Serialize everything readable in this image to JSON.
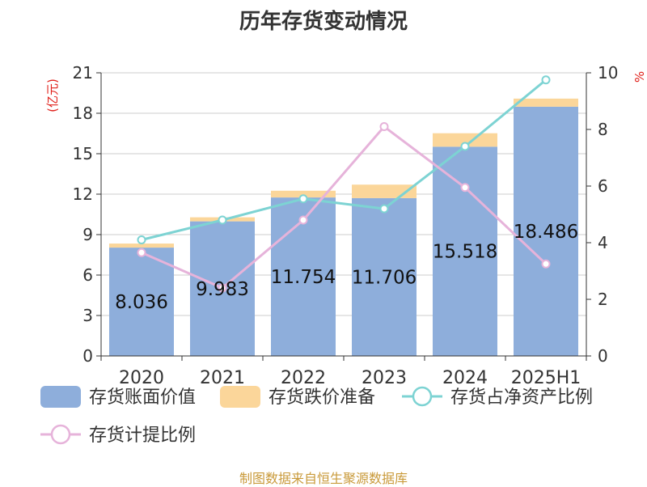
{
  "title": "历年存货变动情况",
  "source": "制图数据来自恒生聚源数据库",
  "colors": {
    "book_value": "#8eaedb",
    "reserve": "#fbd69a",
    "net_asset_ratio": "#7dd3d3",
    "provision_ratio": "#e6b3da",
    "axis_label": "#e0201a",
    "source": "#c99a3a"
  },
  "chart_data": {
    "type": "bar",
    "title": "历年存货变动情况",
    "categories": [
      "2020",
      "2021",
      "2022",
      "2023",
      "2024",
      "2025H1"
    ],
    "y_left": {
      "label": "(亿元)",
      "min": 0,
      "max": 21,
      "ticks": [
        0,
        3,
        6,
        9,
        12,
        15,
        18,
        21
      ]
    },
    "y_right": {
      "label": "%",
      "min": 0,
      "max": 10,
      "ticks": [
        0,
        2,
        4,
        6,
        8,
        10
      ]
    },
    "grid": true,
    "legend_position": "bottom",
    "series": [
      {
        "name": "存货账面价值",
        "type": "bar",
        "stack": "inv",
        "axis": "left",
        "values": [
          8.036,
          9.983,
          11.754,
          11.706,
          15.518,
          18.486
        ],
        "labels": [
          "8.036",
          "9.983",
          "11.754",
          "11.706",
          "15.518",
          "18.486"
        ]
      },
      {
        "name": "存货跌价准备",
        "type": "bar",
        "stack": "inv",
        "axis": "left",
        "values": [
          0.3,
          0.3,
          0.5,
          1.0,
          1.0,
          0.6
        ]
      },
      {
        "name": "存货占净资产比例",
        "type": "line",
        "axis": "right",
        "values": [
          4.1,
          4.8,
          5.55,
          5.2,
          7.4,
          9.75
        ]
      },
      {
        "name": "存货计提比例",
        "type": "line",
        "axis": "right",
        "values": [
          3.65,
          2.4,
          4.8,
          8.1,
          5.95,
          3.25
        ]
      }
    ]
  }
}
